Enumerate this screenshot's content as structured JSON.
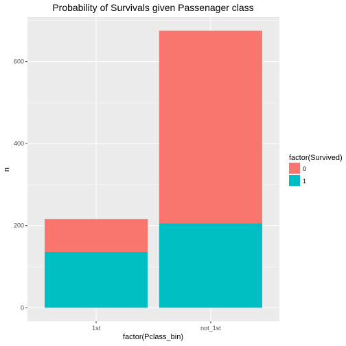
{
  "chart_data": {
    "type": "bar",
    "stacked": true,
    "title": "Probability of Survivals given Passenager class",
    "xlabel": "factor(Pclass_bin)",
    "ylabel": "n",
    "categories": [
      "1st",
      "not_1st"
    ],
    "series": [
      {
        "name": "0",
        "values": [
          80,
          469
        ],
        "color": "#F8766D"
      },
      {
        "name": "1",
        "values": [
          136,
          206
        ],
        "color": "#00BFC4"
      }
    ],
    "ylim": [
      -33,
      708
    ],
    "yticks": [
      0,
      200,
      400,
      600
    ],
    "grid": true,
    "legend": {
      "title": "factor(Survived)",
      "position": "right"
    },
    "panel_background": "#EBEBEB",
    "gridline_color": "#FFFFFF"
  }
}
